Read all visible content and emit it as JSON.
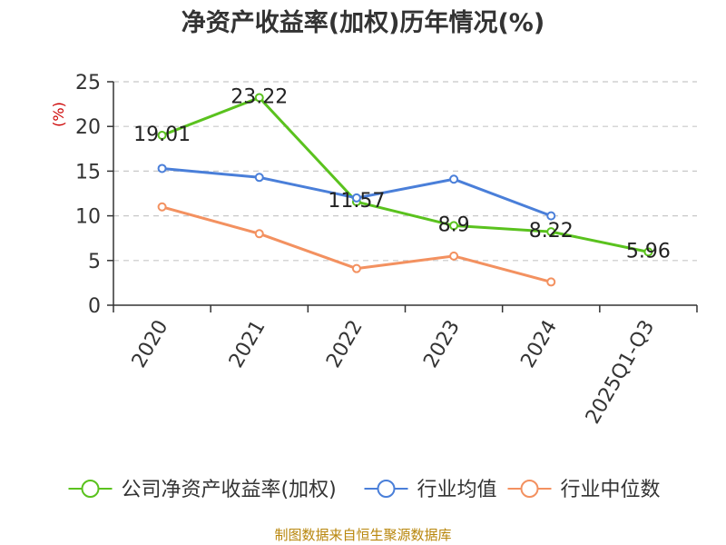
{
  "chart_data": {
    "type": "line",
    "title": "净资产收益率(加权)历年情况(%)",
    "ylabel": "(%)",
    "xlabel": "",
    "categories": [
      "2020",
      "2021",
      "2022",
      "2023",
      "2024",
      "2025Q1-Q3"
    ],
    "ylim": [
      0,
      25
    ],
    "yticks": [
      0,
      5,
      10,
      15,
      20,
      25
    ],
    "grid": true,
    "legend_position": "bottom",
    "series": [
      {
        "name": "公司净资产收益率(加权)",
        "color": "#5ac21e",
        "values": [
          19.01,
          23.22,
          11.57,
          8.9,
          8.22,
          5.96
        ],
        "labels": [
          "19.01",
          "23.22",
          "11.57",
          "8.9",
          "8.22",
          "5.96"
        ]
      },
      {
        "name": "行业均值",
        "color": "#4a7fd9",
        "values": [
          15.3,
          14.3,
          12.0,
          14.1,
          10.0,
          null
        ]
      },
      {
        "name": "行业中位数",
        "color": "#f39160",
        "values": [
          11.0,
          8.0,
          4.1,
          5.5,
          2.6,
          null
        ]
      }
    ]
  },
  "source": "制图数据来自恒生聚源数据库"
}
